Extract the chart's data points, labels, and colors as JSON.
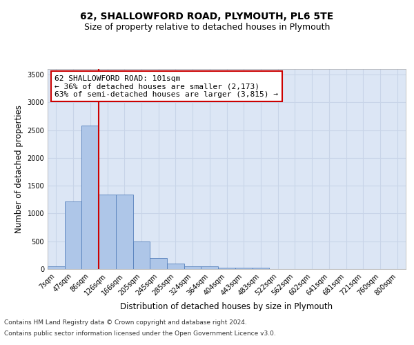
{
  "title_line1": "62, SHALLOWFORD ROAD, PLYMOUTH, PL6 5TE",
  "title_line2": "Size of property relative to detached houses in Plymouth",
  "xlabel": "Distribution of detached houses by size in Plymouth",
  "ylabel": "Number of detached properties",
  "bin_labels": [
    "7sqm",
    "47sqm",
    "86sqm",
    "126sqm",
    "166sqm",
    "205sqm",
    "245sqm",
    "285sqm",
    "324sqm",
    "364sqm",
    "404sqm",
    "443sqm",
    "483sqm",
    "522sqm",
    "562sqm",
    "602sqm",
    "641sqm",
    "681sqm",
    "721sqm",
    "760sqm",
    "800sqm"
  ],
  "bar_values": [
    55,
    1220,
    2580,
    1340,
    1340,
    495,
    195,
    100,
    55,
    55,
    30,
    30,
    30,
    0,
    0,
    0,
    0,
    0,
    0,
    0,
    0
  ],
  "bar_color": "#aec6e8",
  "bar_edge_color": "#5580bb",
  "vline_color": "#cc0000",
  "vline_pos": 2.5,
  "annotation_text": "62 SHALLOWFORD ROAD: 101sqm\n← 36% of detached houses are smaller (2,173)\n63% of semi-detached houses are larger (3,815) →",
  "annotation_box_color": "#cc0000",
  "ylim": [
    0,
    3600
  ],
  "yticks": [
    0,
    500,
    1000,
    1500,
    2000,
    2500,
    3000,
    3500
  ],
  "grid_color": "#c8d4e8",
  "background_color": "#dce6f5",
  "footer_line1": "Contains HM Land Registry data © Crown copyright and database right 2024.",
  "footer_line2": "Contains public sector information licensed under the Open Government Licence v3.0.",
  "title_fontsize": 10,
  "subtitle_fontsize": 9,
  "axis_label_fontsize": 8.5,
  "tick_fontsize": 7,
  "annotation_fontsize": 8,
  "footer_fontsize": 6.5
}
